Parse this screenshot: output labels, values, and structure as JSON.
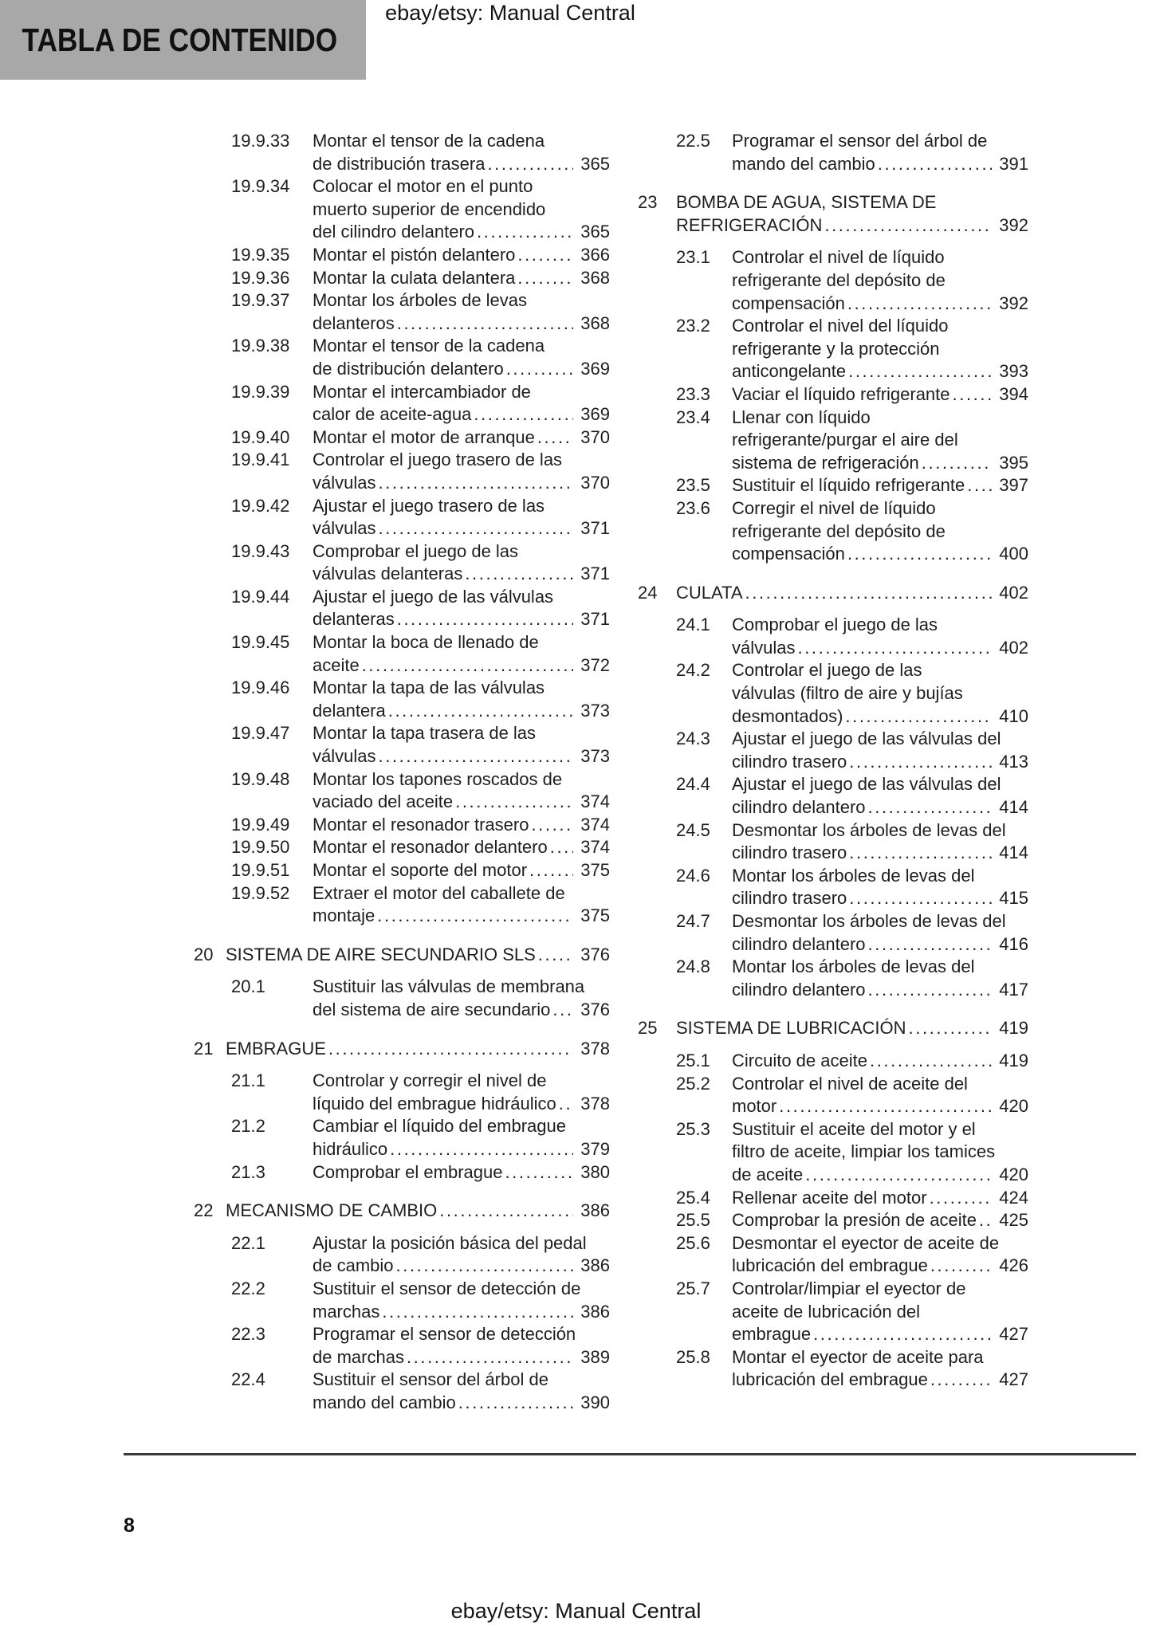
{
  "header": {
    "box_label": "TABLA DE CONTENIDO",
    "doc_title": "ebay/etsy: Manual Central"
  },
  "footer": {
    "page_number": "8",
    "doc_title": "ebay/etsy: Manual Central"
  },
  "colors": {
    "header_box_bg": "#a8a8a8",
    "text": "#1e1e1e",
    "rule": "#3a3a3a"
  },
  "toc": {
    "left": [
      {
        "type": "sub",
        "num": "19.9.33",
        "lines": [
          "Montar el tensor de la cadena",
          "de distribución trasera"
        ],
        "page": "365"
      },
      {
        "type": "sub",
        "num": "19.9.34",
        "lines": [
          "Colocar el motor en el punto",
          "muerto superior de encendido",
          "del cilindro delantero"
        ],
        "page": "365"
      },
      {
        "type": "sub",
        "num": "19.9.35",
        "lines": [
          "Montar el pistón delantero"
        ],
        "page": "366"
      },
      {
        "type": "sub",
        "num": "19.9.36",
        "lines": [
          "Montar la culata delantera"
        ],
        "page": "368"
      },
      {
        "type": "sub",
        "num": "19.9.37",
        "lines": [
          "Montar los árboles de levas",
          "delanteros"
        ],
        "page": "368"
      },
      {
        "type": "sub",
        "num": "19.9.38",
        "lines": [
          "Montar el tensor de la cadena",
          "de distribución delantero"
        ],
        "page": "369"
      },
      {
        "type": "sub",
        "num": "19.9.39",
        "lines": [
          "Montar el intercambiador de",
          "calor de aceite-agua"
        ],
        "page": "369"
      },
      {
        "type": "sub",
        "num": "19.9.40",
        "lines": [
          "Montar el motor de arranque"
        ],
        "page": "370"
      },
      {
        "type": "sub",
        "num": "19.9.41",
        "lines": [
          "Controlar el juego trasero de las",
          "válvulas"
        ],
        "page": "370"
      },
      {
        "type": "sub",
        "num": "19.9.42",
        "lines": [
          "Ajustar el juego trasero de las",
          "válvulas"
        ],
        "page": "371"
      },
      {
        "type": "sub",
        "num": "19.9.43",
        "lines": [
          "Comprobar el juego de las",
          "válvulas delanteras"
        ],
        "page": "371"
      },
      {
        "type": "sub",
        "num": "19.9.44",
        "lines": [
          "Ajustar el juego de las válvulas",
          "delanteras"
        ],
        "page": "371"
      },
      {
        "type": "sub",
        "num": "19.9.45",
        "lines": [
          "Montar la boca de llenado de",
          "aceite"
        ],
        "page": "372"
      },
      {
        "type": "sub",
        "num": "19.9.46",
        "lines": [
          "Montar la tapa de las válvulas",
          "delantera"
        ],
        "page": "373"
      },
      {
        "type": "sub",
        "num": "19.9.47",
        "lines": [
          "Montar la tapa trasera de las",
          "válvulas"
        ],
        "page": "373"
      },
      {
        "type": "sub",
        "num": "19.9.48",
        "lines": [
          "Montar los tapones roscados de",
          "vaciado del aceite"
        ],
        "page": "374"
      },
      {
        "type": "sub",
        "num": "19.9.49",
        "lines": [
          "Montar el resonador trasero"
        ],
        "page": "374"
      },
      {
        "type": "sub",
        "num": "19.9.50",
        "lines": [
          "Montar el resonador delantero"
        ],
        "page": "374"
      },
      {
        "type": "sub",
        "num": "19.9.51",
        "lines": [
          "Montar el soporte del motor"
        ],
        "page": "375"
      },
      {
        "type": "sub",
        "num": "19.9.52",
        "lines": [
          "Extraer el motor del caballete de",
          "montaje"
        ],
        "page": "375"
      },
      {
        "type": "section",
        "num": "20",
        "lines": [
          "SISTEMA DE AIRE SECUNDARIO SLS"
        ],
        "page": "376"
      },
      {
        "type": "sub",
        "num": "20.1",
        "lines": [
          "Sustituir las válvulas de membrana",
          "del sistema de aire secundario"
        ],
        "page": "376"
      },
      {
        "type": "section",
        "num": "21",
        "lines": [
          "EMBRAGUE"
        ],
        "page": "378"
      },
      {
        "type": "sub",
        "num": "21.1",
        "lines": [
          "Controlar y corregir el nivel de",
          "líquido del embrague hidráulico"
        ],
        "page": "378"
      },
      {
        "type": "sub",
        "num": "21.2",
        "lines": [
          "Cambiar el líquido del embrague",
          "hidráulico"
        ],
        "page": "379"
      },
      {
        "type": "sub",
        "num": "21.3",
        "lines": [
          "Comprobar el embrague"
        ],
        "page": "380"
      },
      {
        "type": "section",
        "num": "22",
        "lines": [
          "MECANISMO DE CAMBIO"
        ],
        "page": "386"
      },
      {
        "type": "sub",
        "num": "22.1",
        "lines": [
          "Ajustar la posición básica del pedal",
          "de cambio"
        ],
        "page": "386"
      },
      {
        "type": "sub",
        "num": "22.2",
        "lines": [
          "Sustituir el sensor de detección de",
          "marchas"
        ],
        "page": "386"
      },
      {
        "type": "sub",
        "num": "22.3",
        "lines": [
          "Programar el sensor de detección",
          "de marchas"
        ],
        "page": "389"
      },
      {
        "type": "sub",
        "num": "22.4",
        "lines": [
          "Sustituir el sensor del árbol de",
          "mando del cambio"
        ],
        "page": "390"
      }
    ],
    "right": [
      {
        "type": "sub",
        "num": "22.5",
        "lines": [
          "Programar el sensor del árbol de",
          "mando del cambio"
        ],
        "page": "391"
      },
      {
        "type": "section",
        "num": "23",
        "lines": [
          "BOMBA DE AGUA, SISTEMA DE",
          "REFRIGERACIÓN"
        ],
        "page": "392"
      },
      {
        "type": "sub",
        "num": "23.1",
        "lines": [
          "Controlar el nivel de líquido",
          "refrigerante del depósito de",
          "compensación"
        ],
        "page": "392"
      },
      {
        "type": "sub",
        "num": "23.2",
        "lines": [
          "Controlar el nivel del líquido",
          "refrigerante y la protección",
          "anticongelante"
        ],
        "page": "393"
      },
      {
        "type": "sub",
        "num": "23.3",
        "lines": [
          "Vaciar el líquido refrigerante"
        ],
        "page": "394"
      },
      {
        "type": "sub",
        "num": "23.4",
        "lines": [
          "Llenar con líquido",
          "refrigerante/purgar el aire del",
          "sistema de refrigeración"
        ],
        "page": "395"
      },
      {
        "type": "sub",
        "num": "23.5",
        "lines": [
          "Sustituir el líquido refrigerante"
        ],
        "page": "397"
      },
      {
        "type": "sub",
        "num": "23.6",
        "lines": [
          "Corregir el nivel de líquido",
          "refrigerante del depósito de",
          "compensación"
        ],
        "page": "400"
      },
      {
        "type": "section",
        "num": "24",
        "lines": [
          "CULATA"
        ],
        "page": "402"
      },
      {
        "type": "sub",
        "num": "24.1",
        "lines": [
          "Comprobar el juego de las",
          "válvulas"
        ],
        "page": "402"
      },
      {
        "type": "sub",
        "num": "24.2",
        "lines": [
          "Controlar el juego de las",
          "válvulas (filtro de aire y bujías",
          "desmontados)"
        ],
        "page": "410"
      },
      {
        "type": "sub",
        "num": "24.3",
        "lines": [
          "Ajustar el juego de las válvulas del",
          "cilindro trasero"
        ],
        "page": "413"
      },
      {
        "type": "sub",
        "num": "24.4",
        "lines": [
          "Ajustar el juego de las válvulas del",
          "cilindro delantero"
        ],
        "page": "414"
      },
      {
        "type": "sub",
        "num": "24.5",
        "lines": [
          "Desmontar los árboles de levas del",
          "cilindro trasero"
        ],
        "page": "414"
      },
      {
        "type": "sub",
        "num": "24.6",
        "lines": [
          "Montar los árboles de levas del",
          "cilindro trasero"
        ],
        "page": "415"
      },
      {
        "type": "sub",
        "num": "24.7",
        "lines": [
          "Desmontar los árboles de levas del",
          "cilindro delantero"
        ],
        "page": "416"
      },
      {
        "type": "sub",
        "num": "24.8",
        "lines": [
          "Montar los árboles de levas del",
          "cilindro delantero"
        ],
        "page": "417"
      },
      {
        "type": "section",
        "num": "25",
        "lines": [
          "SISTEMA DE LUBRICACIÓN"
        ],
        "page": "419"
      },
      {
        "type": "sub",
        "num": "25.1",
        "lines": [
          "Circuito de aceite"
        ],
        "page": "419"
      },
      {
        "type": "sub",
        "num": "25.2",
        "lines": [
          "Controlar el nivel de aceite del",
          "motor"
        ],
        "page": "420"
      },
      {
        "type": "sub",
        "num": "25.3",
        "lines": [
          "Sustituir el aceite del motor y el",
          "filtro de aceite, limpiar los tamices",
          "de aceite"
        ],
        "page": "420"
      },
      {
        "type": "sub",
        "num": "25.4",
        "lines": [
          "Rellenar aceite del motor"
        ],
        "page": "424"
      },
      {
        "type": "sub",
        "num": "25.5",
        "lines": [
          "Comprobar la presión de aceite"
        ],
        "page": "425"
      },
      {
        "type": "sub",
        "num": "25.6",
        "lines": [
          "Desmontar el eyector de aceite de",
          "lubricación del embrague"
        ],
        "page": "426"
      },
      {
        "type": "sub",
        "num": "25.7",
        "lines": [
          "Controlar/limpiar el eyector de",
          "aceite de lubricación del",
          "embrague"
        ],
        "page": "427"
      },
      {
        "type": "sub",
        "num": "25.8",
        "lines": [
          "Montar el eyector de aceite para",
          "lubricación del embrague"
        ],
        "page": "427"
      }
    ]
  }
}
